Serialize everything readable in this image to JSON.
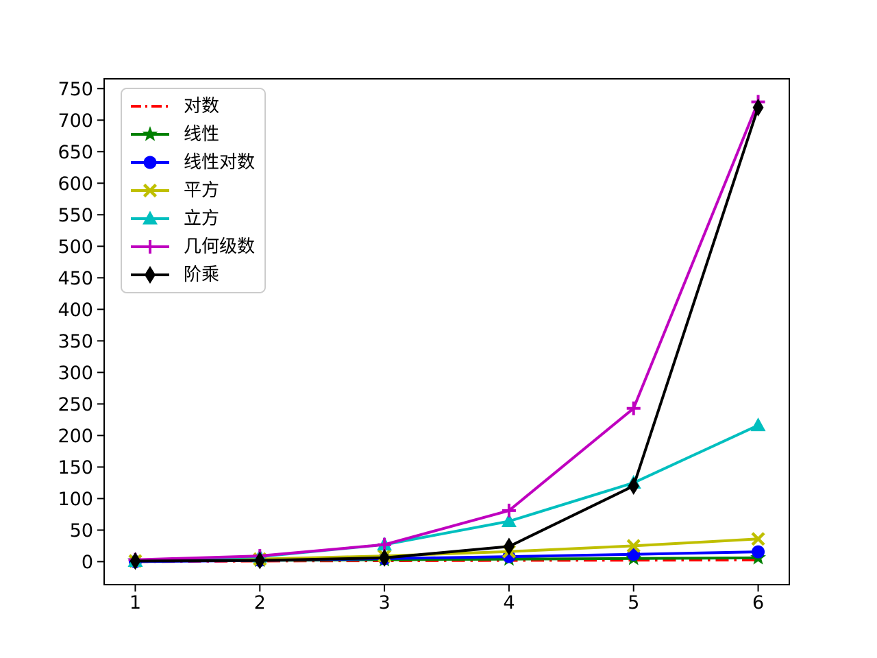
{
  "figure": {
    "background_color": "#ffffff",
    "axes_edge_color": "#000000",
    "legend_border_color": "#cccccc"
  },
  "chart_data": {
    "type": "line",
    "x": [
      1,
      2,
      3,
      4,
      5,
      6
    ],
    "xlim": [
      0.75,
      6.25
    ],
    "ylim": [
      -36.5,
      765.5
    ],
    "xticks": [
      1,
      2,
      3,
      4,
      5,
      6
    ],
    "yticks": [
      0,
      50,
      100,
      150,
      200,
      250,
      300,
      350,
      400,
      450,
      500,
      550,
      600,
      650,
      700,
      750
    ],
    "xlabel": "",
    "ylabel": "",
    "grid": false,
    "legend_position": "upper-left",
    "series": [
      {
        "key": "log",
        "name": "对数",
        "color": "#ff0000",
        "linestyle": "dashdot",
        "marker": "none",
        "values": [
          0,
          1,
          1.58,
          2,
          2.32,
          2.58
        ]
      },
      {
        "key": "linear",
        "name": "线性",
        "color": "#008000",
        "linestyle": "solid",
        "marker": "star",
        "values": [
          1,
          2,
          3,
          4,
          5,
          6
        ]
      },
      {
        "key": "linearithmic",
        "name": "线性对数",
        "color": "#0000ff",
        "linestyle": "solid",
        "marker": "circle",
        "values": [
          0,
          2,
          4.75,
          8,
          11.61,
          15.51
        ]
      },
      {
        "key": "square",
        "name": "平方",
        "color": "#bfbf00",
        "linestyle": "solid",
        "marker": "x",
        "values": [
          1,
          4,
          9,
          16,
          25,
          36
        ]
      },
      {
        "key": "cube",
        "name": "立方",
        "color": "#00bfbf",
        "linestyle": "solid",
        "marker": "triangle-up",
        "values": [
          1,
          8,
          27,
          64,
          125,
          216
        ]
      },
      {
        "key": "geometric",
        "name": "几何级数",
        "color": "#bf00bf",
        "linestyle": "solid",
        "marker": "plus",
        "values": [
          3,
          9,
          27,
          81,
          243,
          729
        ]
      },
      {
        "key": "factorial",
        "name": "阶乘",
        "color": "#000000",
        "linestyle": "solid",
        "marker": "diamond-thin",
        "values": [
          1,
          2,
          6,
          24,
          120,
          720
        ]
      }
    ]
  }
}
